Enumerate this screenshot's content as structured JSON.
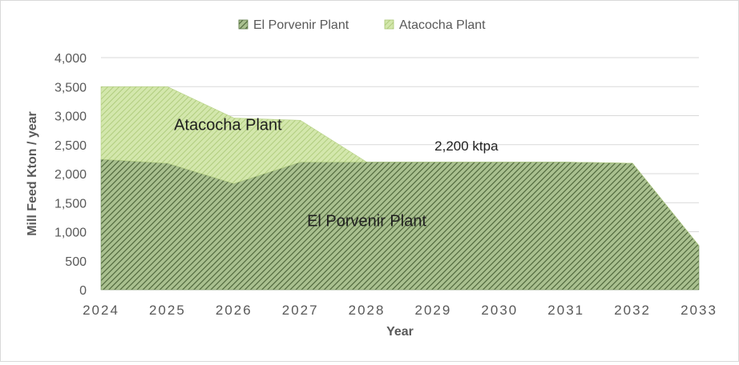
{
  "chart_data": {
    "type": "area",
    "stacked": true,
    "x": [
      2024,
      2025,
      2026,
      2027,
      2028,
      2029,
      2030,
      2031,
      2032,
      2033
    ],
    "x_tick_labels": [
      "2024",
      "2025",
      "2026",
      "2027",
      "2028",
      "2029",
      "2030",
      "2031",
      "2032",
      "2033"
    ],
    "series": [
      {
        "name": "El Porvenir Plant",
        "values": [
          2250,
          2180,
          1830,
          2200,
          2200,
          2200,
          2200,
          2200,
          2180,
          760
        ],
        "color": "#7a9a62",
        "pattern": "diagonal-hatch"
      },
      {
        "name": "Atacocha Plant",
        "values": [
          1250,
          1320,
          1130,
          720,
          0,
          0,
          0,
          0,
          0,
          0
        ],
        "color": "#c3dc94",
        "pattern": "diagonal-hatch"
      }
    ],
    "xlabel": "Year",
    "ylabel": "Mill Feed Kton / year",
    "ylim": [
      0,
      4000
    ],
    "y_ticks": [
      0,
      500,
      1000,
      1500,
      2000,
      2500,
      3000,
      3500,
      4000
    ],
    "y_tick_labels": [
      "0",
      "500",
      "1,000",
      "1,500",
      "2,000",
      "2,500",
      "3,000",
      "3,500",
      "4,000"
    ],
    "grid": "horizontal",
    "legend": "top-center",
    "annotations": [
      {
        "text": "Atacocha Plant",
        "x": 2025.1,
        "y": 2750
      },
      {
        "text": "El Porvenir Plant",
        "x": 2028.0,
        "y": 1100
      },
      {
        "text": "2,200 ktpa",
        "x": 2029.5,
        "y": 2400
      }
    ]
  }
}
